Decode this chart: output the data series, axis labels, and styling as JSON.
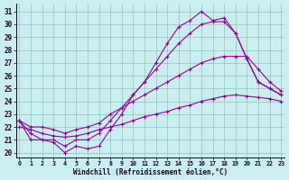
{
  "xlabel": "Windchill (Refroidissement éolien,°C)",
  "bg_color": "#c8eef0",
  "grid_color": "#9bbfbf",
  "line_color": "#990099",
  "xlim": [
    -0.3,
    23.3
  ],
  "ylim": [
    19.6,
    31.6
  ],
  "yticks": [
    20,
    21,
    22,
    23,
    24,
    25,
    26,
    27,
    28,
    29,
    30,
    31
  ],
  "xticks": [
    0,
    1,
    2,
    3,
    4,
    5,
    6,
    7,
    8,
    9,
    10,
    11,
    12,
    13,
    14,
    15,
    16,
    17,
    18,
    19,
    20,
    21,
    22,
    23
  ],
  "series": [
    {
      "x": [
        0,
        1,
        2,
        3,
        4,
        5,
        6,
        7,
        8,
        9,
        10,
        11,
        12,
        13,
        14,
        15,
        16,
        17,
        18,
        19,
        20,
        21,
        22,
        23
      ],
      "y": [
        22.5,
        21.0,
        21.0,
        20.8,
        20.0,
        20.5,
        20.3,
        20.5,
        21.8,
        23.0,
        24.5,
        25.5,
        27.0,
        28.5,
        29.8,
        30.3,
        31.0,
        30.3,
        30.5,
        29.3,
        27.3,
        25.5,
        25.0,
        24.5
      ]
    },
    {
      "x": [
        0,
        1,
        2,
        3,
        4,
        5,
        6,
        7,
        8,
        9,
        10,
        11,
        12,
        13,
        14,
        15,
        16,
        17,
        18,
        19,
        20,
        21,
        22,
        23
      ],
      "y": [
        22.5,
        21.5,
        21.0,
        21.0,
        20.5,
        21.0,
        21.0,
        21.5,
        22.5,
        23.5,
        24.5,
        25.5,
        26.5,
        27.5,
        28.5,
        29.3,
        30.0,
        30.2,
        30.2,
        29.3,
        27.3,
        25.5,
        25.0,
        24.5
      ]
    },
    {
      "x": [
        0,
        1,
        2,
        3,
        4,
        5,
        6,
        7,
        8,
        9,
        10,
        11,
        12,
        13,
        14,
        15,
        16,
        17,
        18,
        19,
        20,
        21,
        22,
        23
      ],
      "y": [
        22.5,
        22.0,
        22.0,
        21.8,
        21.5,
        21.8,
        22.0,
        22.3,
        23.0,
        23.5,
        24.0,
        24.5,
        25.0,
        25.5,
        26.0,
        26.5,
        27.0,
        27.3,
        27.5,
        27.5,
        27.5,
        26.5,
        25.5,
        24.8
      ]
    },
    {
      "x": [
        0,
        1,
        2,
        3,
        4,
        5,
        6,
        7,
        8,
        9,
        10,
        11,
        12,
        13,
        14,
        15,
        16,
        17,
        18,
        19,
        20,
        21,
        22,
        23
      ],
      "y": [
        22.0,
        21.8,
        21.5,
        21.3,
        21.2,
        21.3,
        21.5,
        21.8,
        22.0,
        22.2,
        22.5,
        22.8,
        23.0,
        23.2,
        23.5,
        23.7,
        24.0,
        24.2,
        24.4,
        24.5,
        24.4,
        24.3,
        24.2,
        24.0
      ]
    }
  ]
}
